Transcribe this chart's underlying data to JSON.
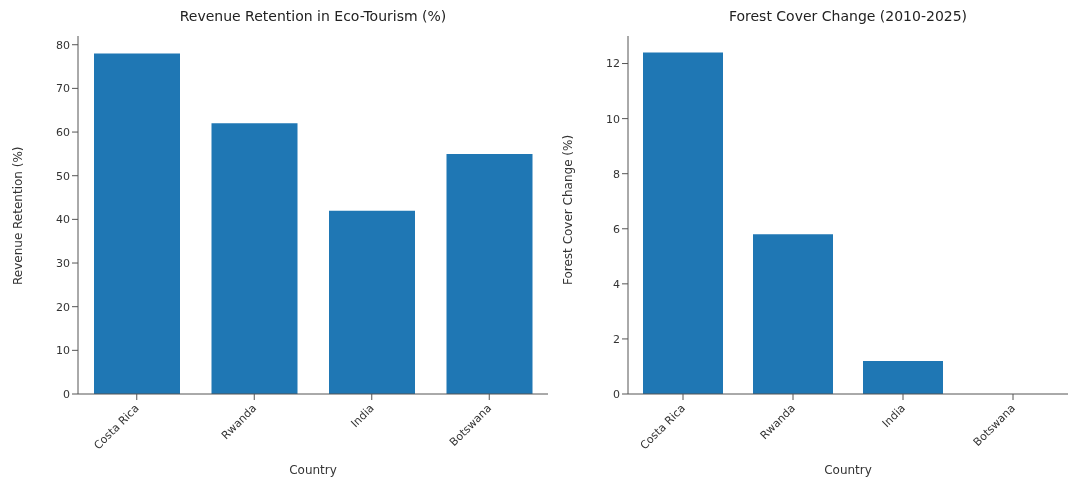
{
  "chart_data": [
    {
      "type": "bar",
      "title": "Revenue Retention in Eco-Tourism (%)",
      "xlabel": "Country",
      "ylabel": "Revenue Retention (%)",
      "categories": [
        "Costa Rica",
        "Rwanda",
        "India",
        "Botswana"
      ],
      "values": [
        78,
        62,
        42,
        55
      ],
      "color": "#1f77b4",
      "ylim": [
        0,
        82
      ],
      "yticks": [
        0,
        10,
        20,
        30,
        40,
        50,
        60,
        70,
        80
      ],
      "grid": false
    },
    {
      "type": "bar",
      "title": "Forest Cover Change (2010-2025)",
      "xlabel": "Country",
      "ylabel": "Forest Cover Change (%)",
      "categories": [
        "Costa Rica",
        "Rwanda",
        "India",
        "Botswana"
      ],
      "values": [
        12.4,
        5.8,
        1.2,
        0
      ],
      "color": "#1f77b4",
      "ylim": [
        0,
        13
      ],
      "yticks": [
        0,
        2,
        4,
        6,
        8,
        10,
        12
      ],
      "grid": false
    }
  ]
}
